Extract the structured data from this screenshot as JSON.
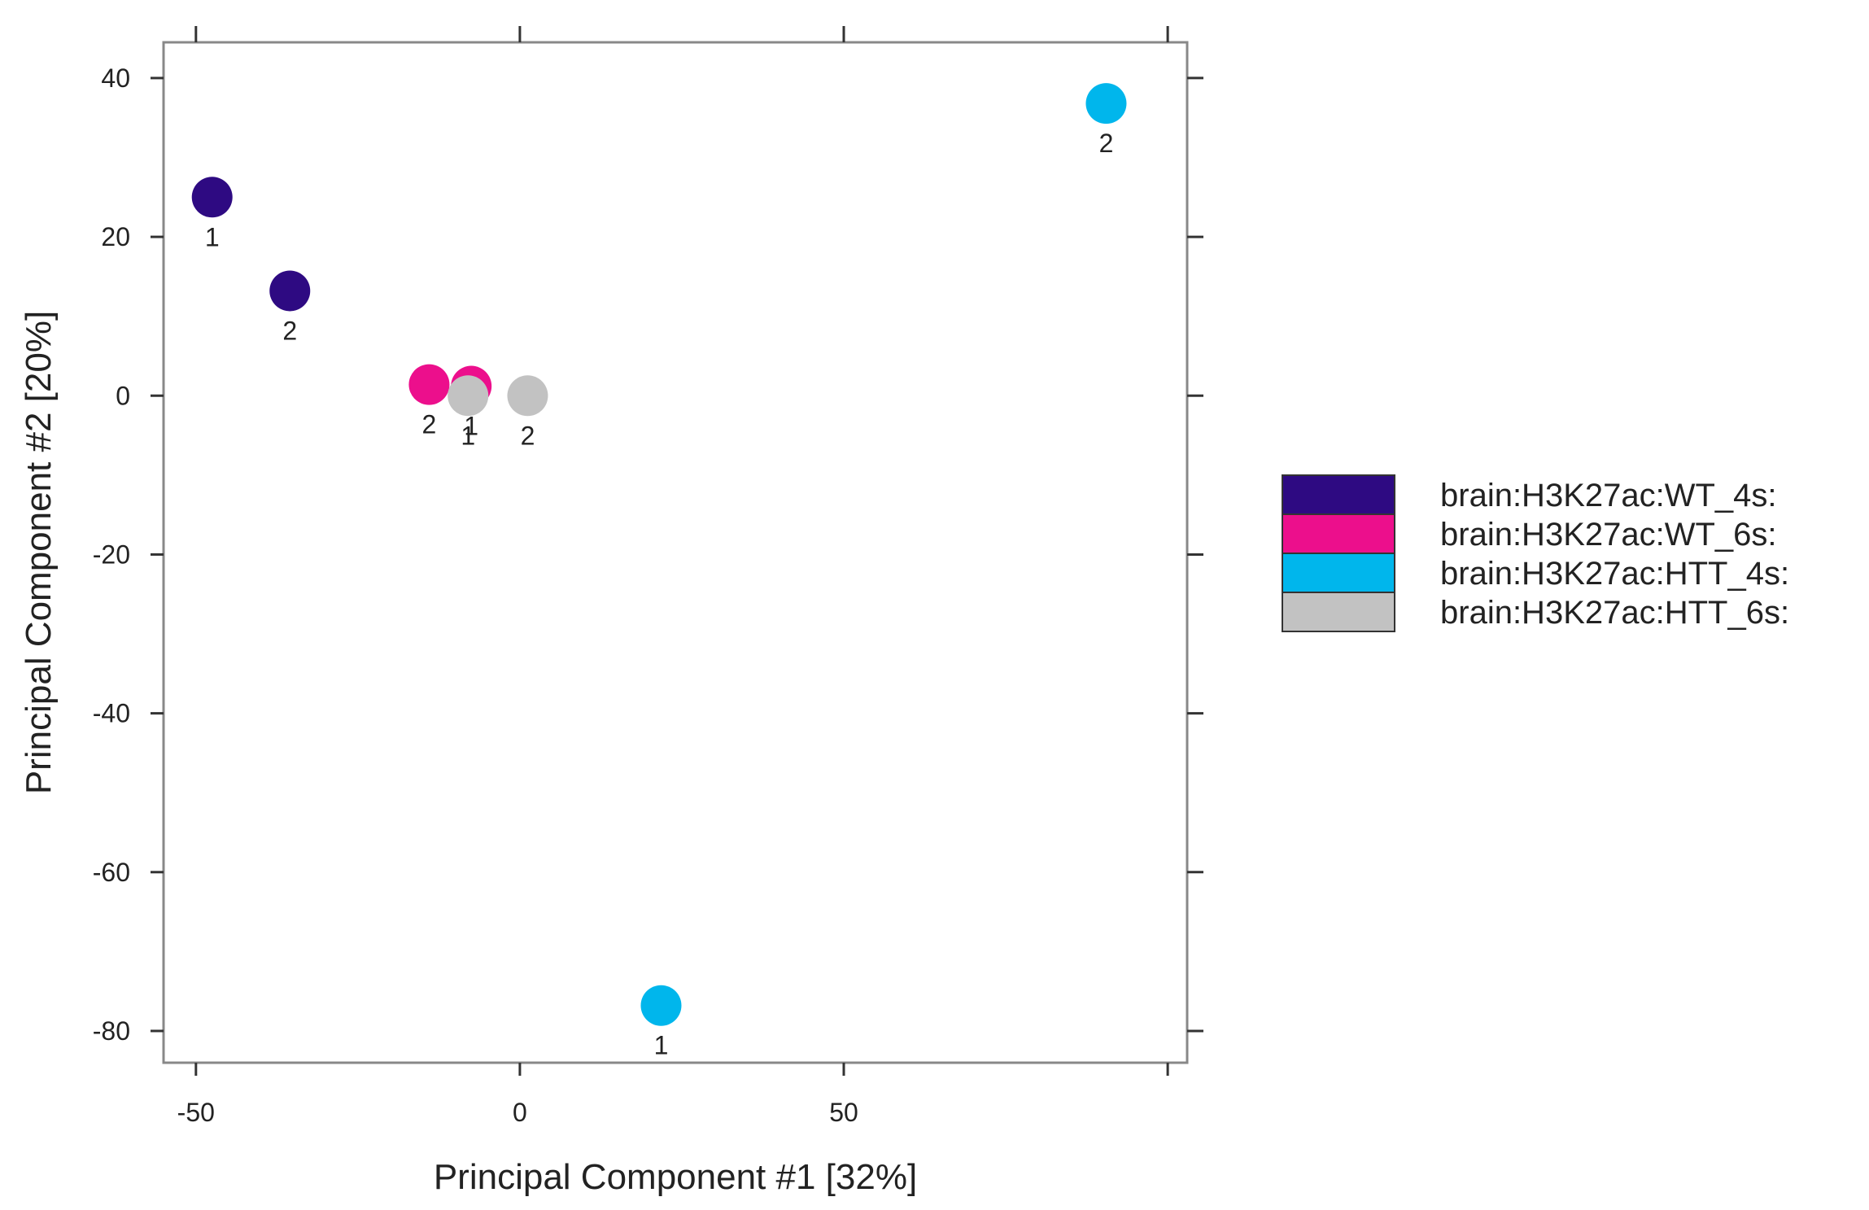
{
  "chart_data": {
    "type": "scatter",
    "xlabel": "Principal Component #1 [32%]",
    "ylabel": "Principal Component #2 [20%]",
    "xlim": [
      -55,
      103
    ],
    "ylim": [
      -84,
      44.5
    ],
    "xticks": [
      -50,
      0,
      50
    ],
    "yticks": [
      40,
      20,
      0,
      -20,
      -40,
      -60,
      -80
    ],
    "xtick_labels": [
      "-50",
      "0",
      "50"
    ],
    "ytick_labels": [
      "40",
      "20",
      "0",
      "-20",
      "-40",
      "-60",
      "-80"
    ],
    "grid": false,
    "legend_position": "right",
    "series": [
      {
        "name": "brain:H3K27ac:WT_4s:",
        "color": "#2e0a82",
        "points": [
          {
            "x": -47.5,
            "y": 25.0,
            "label": "1"
          },
          {
            "x": -35.5,
            "y": 13.2,
            "label": "2"
          }
        ]
      },
      {
        "name": "brain:H3K27ac:WT_6s:",
        "color": "#ec0f8c",
        "points": [
          {
            "x": -7.5,
            "y": 1.2,
            "label": "1"
          },
          {
            "x": -14.0,
            "y": 1.4,
            "label": "2"
          }
        ]
      },
      {
        "name": "brain:H3K27ac:HTT_4s:",
        "color": "#00b6ec",
        "points": [
          {
            "x": 21.8,
            "y": -76.8,
            "label": "1"
          },
          {
            "x": 90.5,
            "y": 36.8,
            "label": "2"
          }
        ]
      },
      {
        "name": "brain:H3K27ac:HTT_6s:",
        "color": "#c2c2c2",
        "points": [
          {
            "x": -8.0,
            "y": 0.0,
            "label": "1"
          },
          {
            "x": 1.2,
            "y": 0.0,
            "label": "2"
          }
        ]
      }
    ]
  }
}
